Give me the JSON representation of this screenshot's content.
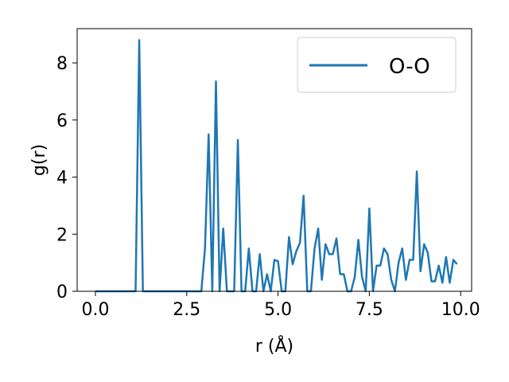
{
  "chart_data": {
    "type": "line",
    "title": "",
    "xlabel": "r (Å)",
    "ylabel": "g(r)",
    "xlim": [
      -0.5,
      10.3
    ],
    "ylim": [
      0,
      9.2
    ],
    "xticks": [
      0,
      2.5,
      5,
      7.5,
      10
    ],
    "xtick_labels": [
      "0.0",
      "2.5",
      "5.0",
      "7.5",
      "10.0"
    ],
    "yticks": [
      0,
      2,
      4,
      6,
      8
    ],
    "ytick_labels": [
      "0",
      "2",
      "4",
      "6",
      "8"
    ],
    "grid": false,
    "legend_position": "top-right",
    "series_color": "#1f77b4",
    "series": [
      {
        "name": "O-O",
        "x": [
          0,
          0.1,
          0.2,
          0.3,
          0.4,
          0.5,
          0.6,
          0.7,
          0.8,
          0.9,
          1.0,
          1.1,
          1.2,
          1.3,
          1.4,
          1.5,
          1.6,
          1.7,
          1.8,
          1.9,
          2.0,
          2.1,
          2.2,
          2.3,
          2.4,
          2.5,
          2.6,
          2.7,
          2.8,
          2.9,
          3.0,
          3.1,
          3.2,
          3.3,
          3.4,
          3.5,
          3.6,
          3.7,
          3.8,
          3.9,
          4.0,
          4.1,
          4.2,
          4.3,
          4.4,
          4.5,
          4.6,
          4.7,
          4.8,
          4.9,
          5.0,
          5.1,
          5.2,
          5.3,
          5.4,
          5.5,
          5.6,
          5.7,
          5.8,
          5.9,
          6.0,
          6.1,
          6.2,
          6.3,
          6.4,
          6.5,
          6.6,
          6.7,
          6.8,
          6.9,
          7.0,
          7.1,
          7.2,
          7.3,
          7.4,
          7.5,
          7.6,
          7.7,
          7.8,
          7.9,
          8.0,
          8.1,
          8.2,
          8.3,
          8.4,
          8.5,
          8.6,
          8.7,
          8.8,
          8.9,
          9.0,
          9.1,
          9.2,
          9.3,
          9.4,
          9.5,
          9.6,
          9.7,
          9.8,
          9.9
        ],
        "y": [
          0,
          0,
          0,
          0,
          0,
          0,
          0,
          0,
          0,
          0,
          0,
          0,
          8.8,
          0,
          0,
          0,
          0,
          0,
          0,
          0,
          0,
          0,
          0,
          0,
          0,
          0,
          0,
          0,
          0,
          0,
          1.5,
          5.5,
          0,
          7.35,
          0,
          2.2,
          0,
          0,
          0,
          5.3,
          0,
          0,
          1.5,
          0,
          0,
          1.3,
          0,
          0.6,
          0,
          1.1,
          1.05,
          0,
          0,
          1.9,
          0.95,
          1.4,
          1.7,
          3.35,
          0,
          0,
          1.5,
          2.2,
          0.4,
          1.65,
          1.3,
          1.3,
          1.85,
          0.6,
          0.6,
          0,
          0,
          0.5,
          1.8,
          0.5,
          0,
          2.9,
          0,
          0.9,
          0.9,
          1.5,
          1.3,
          0.4,
          0,
          1.0,
          1.5,
          0.4,
          1.1,
          1.1,
          4.2,
          0.7,
          1.65,
          1.35,
          0.35,
          0.35,
          0.9,
          0.3,
          1.2,
          0.3,
          1.1,
          0.95
        ]
      }
    ]
  }
}
